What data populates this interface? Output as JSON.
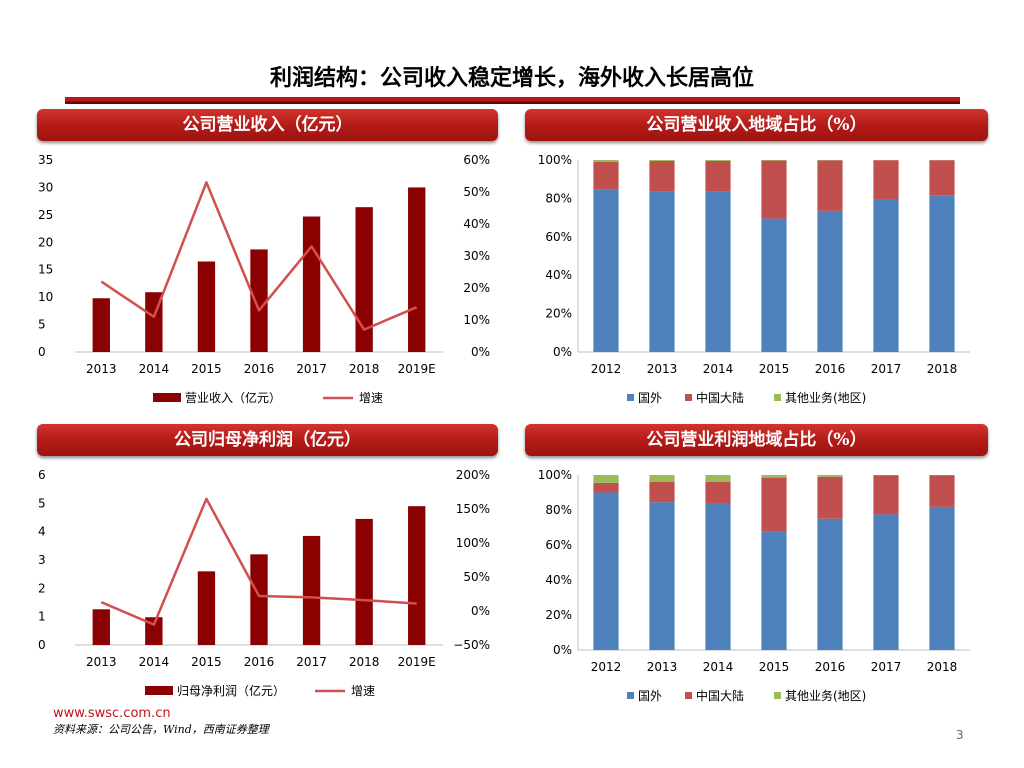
{
  "page": {
    "title": "利润结构：公司收入稳定增长，海外收入长居高位",
    "website": "www.swsc.com.cn",
    "source": "资料来源：公司公告，Wind，西南证券整理",
    "page_number": "3"
  },
  "colors": {
    "bar_dark_red": "#8b0000",
    "growth_line": "#d05050",
    "overseas_blue": "#4f81bd",
    "mainland_red": "#c0504d",
    "other_green": "#9bbb59",
    "header_red": "#b11a16"
  },
  "chart_data": [
    {
      "id": "revenue",
      "type": "bar",
      "title": "公司营业收入（亿元）",
      "categories": [
        "2013",
        "2014",
        "2015",
        "2016",
        "2017",
        "2018",
        "2019E"
      ],
      "series": [
        {
          "name": "营业收入（亿元）",
          "type": "bar",
          "axis": "left",
          "values": [
            9.8,
            10.9,
            16.5,
            18.7,
            24.7,
            26.4,
            30.0
          ]
        },
        {
          "name": "增速",
          "type": "line",
          "axis": "right",
          "values": [
            22,
            11,
            53,
            13,
            33,
            7,
            14
          ]
        }
      ],
      "left_axis": {
        "min": 0,
        "max": 35,
        "step": 5
      },
      "right_axis": {
        "min": 0,
        "max": 60,
        "step": 10,
        "unit": "%"
      },
      "legend": "bottom"
    },
    {
      "id": "revenue_region",
      "type": "bar",
      "stacked": true,
      "title": "公司营业收入地域占比（%）",
      "categories": [
        "2012",
        "2013",
        "2014",
        "2015",
        "2016",
        "2017",
        "2018"
      ],
      "series": [
        {
          "name": "国外",
          "values": [
            84.5,
            83.8,
            83.8,
            69.5,
            73.5,
            79.4,
            81.7
          ]
        },
        {
          "name": "中国大陆",
          "values": [
            14.5,
            15.7,
            15.7,
            30.2,
            26.3,
            20.5,
            18.2
          ]
        },
        {
          "name": "其他业务(地区)",
          "values": [
            1.0,
            0.5,
            0.5,
            0.3,
            0.2,
            0.1,
            0.1
          ]
        }
      ],
      "y_axis": {
        "min": 0,
        "max": 100,
        "step": 20,
        "unit": "%"
      },
      "legend": "bottom"
    },
    {
      "id": "net_profit",
      "type": "bar",
      "title": "公司归母净利润（亿元）",
      "categories": [
        "2013",
        "2014",
        "2015",
        "2016",
        "2017",
        "2018",
        "2019E"
      ],
      "series": [
        {
          "name": "归母净利润（亿元）",
          "type": "bar",
          "axis": "left",
          "values": [
            1.26,
            0.98,
            2.6,
            3.2,
            3.85,
            4.45,
            4.9
          ]
        },
        {
          "name": "增速",
          "type": "line",
          "axis": "right",
          "values": [
            13,
            -20,
            165,
            22,
            20,
            16,
            11
          ]
        }
      ],
      "left_axis": {
        "min": 0,
        "max": 6,
        "step": 1
      },
      "right_axis": {
        "min": -50,
        "max": 200,
        "step": 50,
        "unit": "%"
      },
      "legend": "bottom"
    },
    {
      "id": "profit_region",
      "type": "bar",
      "stacked": true,
      "title": "公司营业利润地域占比（%）",
      "categories": [
        "2012",
        "2013",
        "2014",
        "2015",
        "2016",
        "2017",
        "2018"
      ],
      "series": [
        {
          "name": "国外",
          "values": [
            90,
            84.5,
            84,
            67.5,
            75,
            77.5,
            81.8
          ]
        },
        {
          "name": "中国大陆",
          "values": [
            5.5,
            11.5,
            12,
            31,
            24,
            22.4,
            18.1
          ]
        },
        {
          "name": "其他业务(地区)",
          "values": [
            4.5,
            4,
            4,
            1.5,
            1,
            0.1,
            0.1
          ]
        }
      ],
      "y_axis": {
        "min": 0,
        "max": 100,
        "step": 20,
        "unit": "%"
      },
      "legend": "bottom"
    }
  ]
}
